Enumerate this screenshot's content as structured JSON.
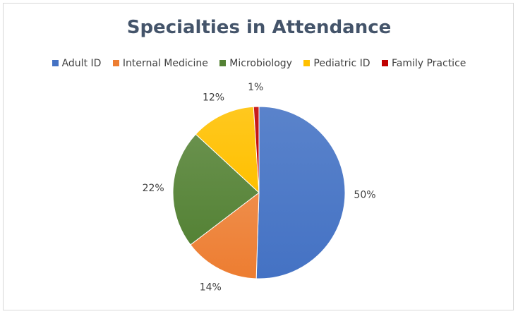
{
  "chart_data": {
    "type": "pie",
    "title": "Specialties in Attendance",
    "categories": [
      "Adult ID",
      "Internal Medicine",
      "Microbiology",
      "Pediatric ID",
      "Family Practice"
    ],
    "values": [
      50,
      14,
      22,
      12,
      1
    ],
    "data_labels": [
      "50%",
      "14%",
      "22%",
      "12%",
      "1%"
    ],
    "colors": [
      "#4472c4",
      "#ed7d31",
      "#548235",
      "#ffc000",
      "#c00000"
    ],
    "legend_position": "top",
    "start_angle": "12 o'clock, clockwise"
  }
}
